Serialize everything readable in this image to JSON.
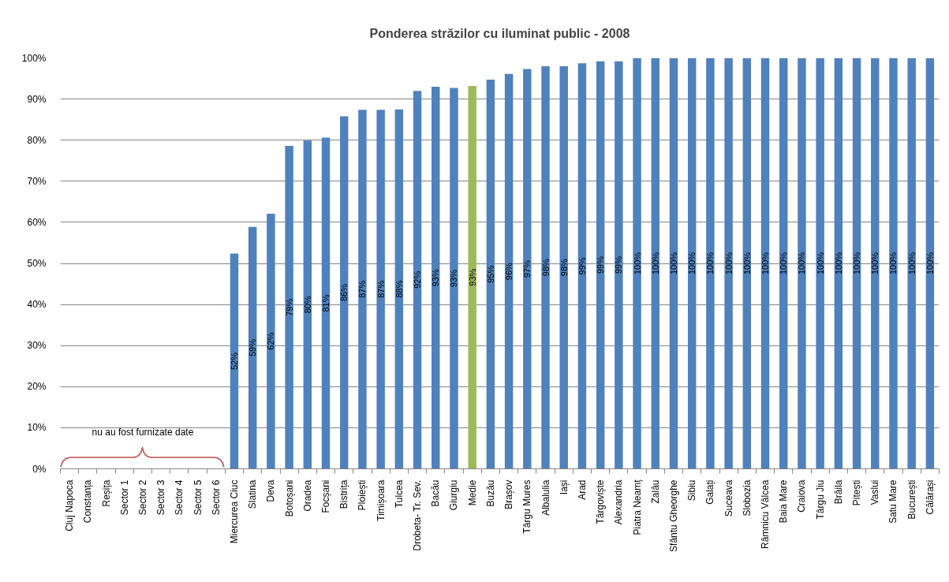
{
  "chart_data": {
    "type": "bar",
    "title": "Ponderea străzilor cu iluminat public - 2008",
    "categories": [
      "Cluj Napoca",
      "Constanța",
      "Reșița",
      "Sector 1",
      "Sector 2",
      "Sector 3",
      "Sector 4",
      "Sector 5",
      "Sector 6",
      "Miercurea Ciuc",
      "Slatina",
      "Deva",
      "Botoșani",
      "Oradea",
      "Focșani",
      "Bistrița",
      "Ploiești",
      "Timișoara",
      "Tulcea",
      "Drobeta- Tr. Sev.",
      "Bacău",
      "Giurgiu",
      "Medie",
      "Buzău",
      "Brașov",
      "Târgu Mures",
      "Albalulia",
      "Iași",
      "Arad",
      "Târgoviște",
      "Alexandria",
      "Piatra Neamț",
      "Zalău",
      "Sfântu Gheorghe",
      "Sibiu",
      "Galați",
      "Suceava",
      "Slobozia",
      "Râmnicu Vâlcea",
      "Baia Mare",
      "Craiova",
      "Târgu Jiu",
      "Brăila",
      "Pitești",
      "Vaslui",
      "Satu Mare",
      "București",
      "Călărași"
    ],
    "values": [
      null,
      null,
      null,
      null,
      null,
      null,
      null,
      null,
      null,
      52.4,
      58.9,
      62.1,
      78.6,
      79.9,
      80.6,
      85.8,
      87.4,
      87.4,
      87.5,
      92.0,
      93.0,
      92.7,
      93.2,
      94.7,
      96.1,
      97.3,
      98.0,
      98.0,
      98.7,
      99.2,
      99.2,
      100,
      100,
      100,
      100,
      100,
      100,
      100,
      100,
      100,
      100,
      100,
      100,
      100,
      100,
      100,
      100,
      100
    ],
    "value_labels": [
      null,
      null,
      null,
      null,
      null,
      null,
      null,
      null,
      null,
      "52%",
      "59%",
      "62%",
      "79%",
      "80%",
      "81%",
      "86%",
      "87%",
      "87%",
      "88%",
      "92%",
      "93%",
      "93%",
      "93%",
      "95%",
      "96%",
      "97%",
      "98%",
      "98%",
      "99%",
      "99%",
      "99%",
      "100%",
      "100%",
      "100%",
      "100%",
      "100%",
      "100%",
      "100%",
      "100%",
      "100%",
      "100%",
      "100%",
      "100%",
      "100%",
      "100%",
      "100%",
      "100%",
      "100%"
    ],
    "colors": [
      "#4f81bd",
      "#4f81bd",
      "#4f81bd",
      "#4f81bd",
      "#4f81bd",
      "#4f81bd",
      "#4f81bd",
      "#4f81bd",
      "#4f81bd",
      "#4f81bd",
      "#4f81bd",
      "#4f81bd",
      "#4f81bd",
      "#4f81bd",
      "#4f81bd",
      "#4f81bd",
      "#4f81bd",
      "#4f81bd",
      "#4f81bd",
      "#4f81bd",
      "#4f81bd",
      "#4f81bd",
      "#9bbb59",
      "#4f81bd",
      "#4f81bd",
      "#4f81bd",
      "#4f81bd",
      "#4f81bd",
      "#4f81bd",
      "#4f81bd",
      "#4f81bd",
      "#4f81bd",
      "#4f81bd",
      "#4f81bd",
      "#4f81bd",
      "#4f81bd",
      "#4f81bd",
      "#4f81bd",
      "#4f81bd",
      "#4f81bd",
      "#4f81bd",
      "#4f81bd",
      "#4f81bd",
      "#4f81bd",
      "#4f81bd",
      "#4f81bd",
      "#4f81bd",
      "#4f81bd"
    ],
    "ylim": [
      0,
      100
    ],
    "yticks": [
      {
        "value": 0,
        "label": "0%"
      },
      {
        "value": 10,
        "label": "10%"
      },
      {
        "value": 20,
        "label": "20%"
      },
      {
        "value": 30,
        "label": "30%"
      },
      {
        "value": 40,
        "label": "40%"
      },
      {
        "value": 50,
        "label": "50%"
      },
      {
        "value": 60,
        "label": "60%"
      },
      {
        "value": 70,
        "label": "70%"
      },
      {
        "value": 80,
        "label": "80%"
      },
      {
        "value": 90,
        "label": "90%"
      },
      {
        "value": 100,
        "label": "100%"
      }
    ],
    "grid": "y",
    "annotations": [
      "nu au fost furnizate date"
    ]
  }
}
